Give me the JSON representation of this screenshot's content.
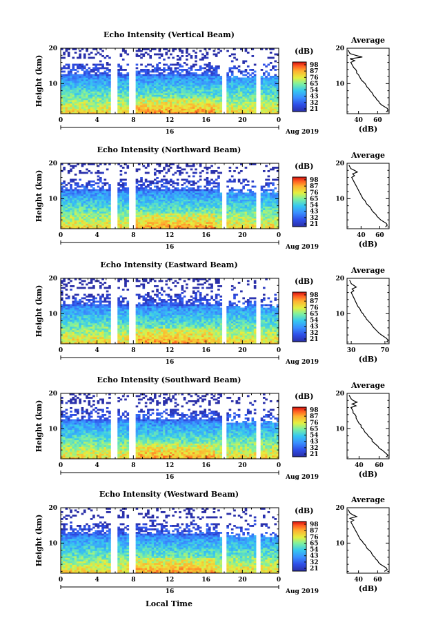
{
  "chart_data": [
    {
      "type": "heatmap",
      "title": "Echo Intensity (Vertical Beam)",
      "ylabel": "Height (km)",
      "xlabel": "",
      "xticks": [
        "0",
        "4",
        "8",
        "12",
        "16",
        "20",
        "0"
      ],
      "yticks": [
        "20",
        "10"
      ],
      "xlim": [
        0,
        24
      ],
      "ylim": [
        1.5,
        20
      ],
      "date_label": "16",
      "month_label": "Aug 2019",
      "colorbar_unit": "(dB)",
      "colorbar_ticks": [
        "98",
        "87",
        "76",
        "65",
        "54",
        "43",
        "32",
        "21"
      ],
      "data_gaps_hours": [
        [
          5.5,
          6.2
        ],
        [
          7.6,
          8.3
        ],
        [
          17.7,
          18.3
        ],
        [
          21.6,
          22.0
        ]
      ],
      "average": {
        "title": "Average",
        "xlabel": "(dB)",
        "xticks": [
          "40",
          "60"
        ],
        "yticks": [
          "20",
          "10"
        ],
        "xlim": [
          28,
          72
        ],
        "ylim": [
          1.5,
          20
        ],
        "height_km": [
          2,
          2.5,
          3,
          3.5,
          4,
          4.5,
          5,
          5.5,
          6,
          6.5,
          7,
          7.5,
          8,
          8.5,
          9,
          9.5,
          10,
          10.5,
          11,
          11.5,
          12,
          12.5,
          13,
          13.5,
          14,
          14.5,
          15,
          15.5,
          16,
          16.5,
          17,
          17.5,
          18,
          18.5,
          19,
          19.5
        ],
        "values_db": [
          69,
          71,
          70,
          67,
          64,
          62,
          61,
          59,
          58,
          56,
          55,
          54,
          52,
          51,
          49,
          48,
          47,
          45,
          43,
          42,
          41,
          40,
          38,
          38,
          37,
          35,
          34,
          33,
          32,
          36,
          31,
          44,
          37,
          31,
          30,
          29
        ]
      }
    },
    {
      "type": "heatmap",
      "title": "Echo Intensity (Northward Beam)",
      "ylabel": "Height (km)",
      "xlabel": "",
      "xticks": [
        "0",
        "4",
        "8",
        "12",
        "16",
        "20",
        "0"
      ],
      "yticks": [
        "20",
        "10"
      ],
      "xlim": [
        0,
        24
      ],
      "ylim": [
        1.5,
        20
      ],
      "date_label": "16",
      "month_label": "Aug 2019",
      "colorbar_unit": "(dB)",
      "colorbar_ticks": [
        "98",
        "87",
        "76",
        "65",
        "54",
        "43",
        "32",
        "21"
      ],
      "data_gaps_hours": [
        [
          5.5,
          6.2
        ],
        [
          7.6,
          8.3
        ],
        [
          17.7,
          18.3
        ],
        [
          21.6,
          22.0
        ]
      ],
      "average": {
        "title": "Average",
        "xlabel": "(dB)",
        "xticks": [
          "40",
          "60"
        ],
        "yticks": [
          "20",
          "10"
        ],
        "xlim": [
          25,
          70
        ],
        "ylim": [
          1.5,
          20
        ],
        "height_km": [
          2,
          2.5,
          3,
          3.5,
          4,
          4.5,
          5,
          5.5,
          6,
          6.5,
          7,
          7.5,
          8,
          8.5,
          9,
          9.5,
          10,
          10.5,
          11,
          11.5,
          12,
          12.5,
          13,
          13.5,
          14,
          14.5,
          15,
          15.5,
          16,
          16.5,
          17,
          17.5,
          18,
          18.5,
          19,
          19.5
        ],
        "values_db": [
          66,
          68,
          67,
          64,
          61,
          59,
          57,
          56,
          54,
          52,
          51,
          50,
          48,
          46,
          45,
          44,
          42,
          41,
          40,
          39,
          38,
          37,
          36,
          35,
          34,
          33,
          32,
          31,
          30,
          33,
          31,
          36,
          33,
          29,
          28,
          27
        ]
      }
    },
    {
      "type": "heatmap",
      "title": "Echo Intensity (Eastward Beam)",
      "ylabel": "Height (km)",
      "xlabel": "",
      "xticks": [
        "0",
        "4",
        "8",
        "12",
        "16",
        "20",
        "0"
      ],
      "yticks": [
        "20",
        "10"
      ],
      "xlim": [
        0,
        24
      ],
      "ylim": [
        1.5,
        20
      ],
      "date_label": "16",
      "month_label": "Aug 2019",
      "colorbar_unit": "(dB)",
      "colorbar_ticks": [
        "98",
        "87",
        "76",
        "65",
        "54",
        "43",
        "32",
        "21"
      ],
      "data_gaps_hours": [
        [
          5.5,
          6.2
        ],
        [
          7.6,
          8.3
        ],
        [
          17.7,
          18.3
        ],
        [
          21.6,
          22.0
        ]
      ],
      "average": {
        "title": "Average",
        "xlabel": "(dB)",
        "xticks": [
          "30",
          "70"
        ],
        "yticks": [
          "20",
          "10"
        ],
        "xlim": [
          25,
          75
        ],
        "ylim": [
          1.5,
          20
        ],
        "height_km": [
          2,
          2.5,
          3,
          3.5,
          4,
          4.5,
          5,
          5.5,
          6,
          6.5,
          7,
          7.5,
          8,
          8.5,
          9,
          9.5,
          10,
          10.5,
          11,
          11.5,
          12,
          12.5,
          13,
          13.5,
          14,
          14.5,
          15,
          15.5,
          16,
          16.5,
          17,
          17.5,
          18,
          18.5,
          19,
          19.5
        ],
        "values_db": [
          72,
          74,
          72,
          69,
          66,
          63,
          61,
          59,
          57,
          55,
          54,
          52,
          50,
          48,
          47,
          45,
          44,
          42,
          41,
          40,
          38,
          37,
          36,
          35,
          34,
          33,
          32,
          31,
          30,
          33,
          31,
          36,
          33,
          30,
          29,
          28
        ]
      }
    },
    {
      "type": "heatmap",
      "title": "Echo Intensity (Southward Beam)",
      "ylabel": "Height (km)",
      "xlabel": "",
      "xticks": [
        "0",
        "4",
        "8",
        "12",
        "16",
        "20",
        "0"
      ],
      "yticks": [
        "20",
        "10"
      ],
      "xlim": [
        0,
        24
      ],
      "ylim": [
        1.5,
        20
      ],
      "date_label": "16",
      "month_label": "Aug 2019",
      "colorbar_unit": "(dB)",
      "colorbar_ticks": [
        "98",
        "87",
        "76",
        "65",
        "54",
        "43",
        "32",
        "21"
      ],
      "data_gaps_hours": [
        [
          5.5,
          6.2
        ],
        [
          7.6,
          8.3
        ],
        [
          17.7,
          18.3
        ],
        [
          21.6,
          22.0
        ]
      ],
      "average": {
        "title": "Average",
        "xlabel": "(dB)",
        "xticks": [
          "40",
          "60"
        ],
        "yticks": [
          "20",
          "10"
        ],
        "xlim": [
          28,
          70
        ],
        "ylim": [
          1.5,
          20
        ],
        "height_km": [
          2,
          2.5,
          3,
          3.5,
          4,
          4.5,
          5,
          5.5,
          6,
          6.5,
          7,
          7.5,
          8,
          8.5,
          9,
          9.5,
          10,
          10.5,
          11,
          11.5,
          12,
          12.5,
          13,
          13.5,
          14,
          14.5,
          15,
          15.5,
          16,
          16.5,
          17,
          17.5,
          18,
          18.5,
          19,
          19.5
        ],
        "values_db": [
          67,
          69,
          67,
          65,
          63,
          60,
          59,
          57,
          55,
          53,
          53,
          51,
          49,
          48,
          46,
          45,
          44,
          42,
          42,
          40,
          39,
          38,
          37,
          37,
          36,
          34,
          34,
          33,
          32,
          37,
          33,
          38,
          34,
          32,
          31,
          30
        ]
      }
    },
    {
      "type": "heatmap",
      "title": "Echo Intensity (Westward Beam)",
      "ylabel": "Height (km)",
      "xlabel": "Local Time",
      "xticks": [
        "0",
        "4",
        "8",
        "12",
        "16",
        "20",
        "0"
      ],
      "yticks": [
        "20",
        "10"
      ],
      "xlim": [
        0,
        24
      ],
      "ylim": [
        1.5,
        20
      ],
      "date_label": "16",
      "month_label": "Aug 2019",
      "colorbar_unit": "(dB)",
      "colorbar_ticks": [
        "98",
        "87",
        "76",
        "65",
        "54",
        "43",
        "32",
        "21"
      ],
      "data_gaps_hours": [
        [
          5.5,
          6.2
        ],
        [
          7.6,
          8.3
        ],
        [
          17.7,
          18.3
        ],
        [
          21.6,
          22.0
        ]
      ],
      "average": {
        "title": "Average",
        "xlabel": "(dB)",
        "xticks": [
          "40",
          "60"
        ],
        "yticks": [
          "20",
          "10"
        ],
        "xlim": [
          28,
          72
        ],
        "ylim": [
          1.5,
          20
        ],
        "height_km": [
          2,
          2.5,
          3,
          3.5,
          4,
          4.5,
          5,
          5.5,
          6,
          6.5,
          7,
          7.5,
          8,
          8.5,
          9,
          9.5,
          10,
          10.5,
          11,
          11.5,
          12,
          12.5,
          13,
          13.5,
          14,
          14.5,
          15,
          15.5,
          16,
          16.5,
          17,
          17.5,
          18,
          18.5,
          19,
          19.5
        ],
        "values_db": [
          67,
          70,
          69,
          66,
          63,
          61,
          60,
          58,
          57,
          55,
          54,
          53,
          51,
          49,
          48,
          47,
          45,
          44,
          42,
          41,
          40,
          39,
          38,
          37,
          36,
          35,
          34,
          33,
          32,
          35,
          31,
          38,
          34,
          31,
          30,
          29
        ]
      }
    }
  ]
}
